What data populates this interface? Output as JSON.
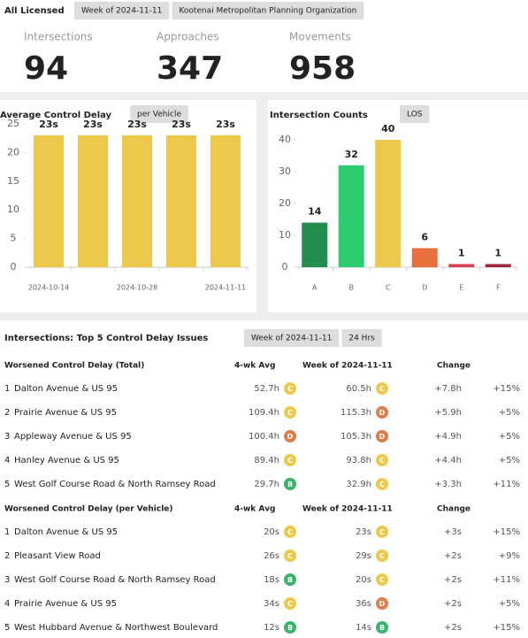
{
  "header": {
    "title": "All Licensed",
    "filters": [
      "Week of 2024-11-11",
      "Kootenai Metropolitan Planning Organization"
    ]
  },
  "stats": [
    {
      "label": "Intersections",
      "value": 94
    },
    {
      "label": "Approaches",
      "value": 347
    },
    {
      "label": "Movements",
      "value": 958
    }
  ],
  "chart_data": [
    {
      "type": "bar",
      "title": "Average Control Delay",
      "button": "per Vehicle",
      "categories": [
        "2024-10-14",
        null,
        "2024-10-28",
        null,
        "2024-11-11"
      ],
      "values": [
        23,
        23,
        23,
        23,
        23
      ],
      "value_labels": [
        "23s",
        "23s",
        "23s",
        "23s",
        "23s"
      ],
      "color": "#ecc94b",
      "ylim": [
        0,
        25
      ],
      "yticks": [
        0,
        5,
        10,
        15,
        20,
        25
      ]
    },
    {
      "type": "bar",
      "title": "Intersection Counts",
      "button": "LOS",
      "categories": [
        "A",
        "B",
        "C",
        "D",
        "E",
        "F"
      ],
      "values": [
        14,
        32,
        40,
        6,
        1,
        1
      ],
      "colors": [
        "#238c4f",
        "#2ecc71",
        "#ecc94b",
        "#e8703f",
        "#d6435a",
        "#a0283e"
      ],
      "ylim": [
        0,
        45
      ],
      "yticks": [
        0,
        10,
        20,
        30,
        40
      ]
    }
  ],
  "table": {
    "title": "Intersections: Top 5 Control Delay Issues",
    "filters": [
      "Week of 2024-11-11",
      "24 Hrs"
    ],
    "sections": [
      {
        "headers": [
          "Worsened Control Delay (Total)",
          "4-wk Avg",
          "Week of 2024-11-11",
          "Change"
        ],
        "rows": [
          {
            "rank": "1",
            "name": "Dalton Avenue & US 95",
            "avg": "52.7h",
            "avg_los": "C",
            "week": "60.5h",
            "week_los": "C",
            "change": "+7.8h",
            "pct": "+15%"
          },
          {
            "rank": "2",
            "name": "Prairie Avenue & US 95",
            "avg": "109.4h",
            "avg_los": "C",
            "week": "115.3h",
            "week_los": "D",
            "change": "+5.9h",
            "pct": "+5%"
          },
          {
            "rank": "3",
            "name": "Appleway Avenue & US 95",
            "avg": "100.4h",
            "avg_los": "D",
            "week": "105.3h",
            "week_los": "D",
            "change": "+4.9h",
            "pct": "+5%"
          },
          {
            "rank": "4",
            "name": "Hanley Avenue & US 95",
            "avg": "89.4h",
            "avg_los": "C",
            "week": "93.8h",
            "week_los": "C",
            "change": "+4.4h",
            "pct": "+5%"
          },
          {
            "rank": "5",
            "name": "West Golf Course Road & North Ramsey Road",
            "avg": "29.7h",
            "avg_los": "B",
            "week": "32.9h",
            "week_los": "C",
            "change": "+3.3h",
            "pct": "+11%"
          }
        ]
      },
      {
        "headers": [
          "Worsened Control Delay (per Vehicle)",
          "4-wk Avg",
          "Week of 2024-11-11",
          "Change"
        ],
        "rows": [
          {
            "rank": "1",
            "name": "Dalton Avenue & US 95",
            "avg": "20s",
            "avg_los": "C",
            "week": "23s",
            "week_los": "C",
            "change": "+3s",
            "pct": "+15%"
          },
          {
            "rank": "2",
            "name": "Pleasant View Road",
            "avg": "26s",
            "avg_los": "C",
            "week": "29s",
            "week_los": "C",
            "change": "+2s",
            "pct": "+9%"
          },
          {
            "rank": "3",
            "name": "West Golf Course Road & North Ramsey Road",
            "avg": "18s",
            "avg_los": "B",
            "week": "20s",
            "week_los": "C",
            "change": "+2s",
            "pct": "+11%"
          },
          {
            "rank": "4",
            "name": "Prairie Avenue & US 95",
            "avg": "34s",
            "avg_los": "C",
            "week": "36s",
            "week_los": "D",
            "change": "+2s",
            "pct": "+5%"
          },
          {
            "rank": "5",
            "name": "West Hubbard Avenue & Northwest Boulevard",
            "avg": "12s",
            "avg_los": "B",
            "week": "14s",
            "week_los": "B",
            "change": "+2s",
            "pct": "+15%"
          }
        ]
      }
    ]
  }
}
